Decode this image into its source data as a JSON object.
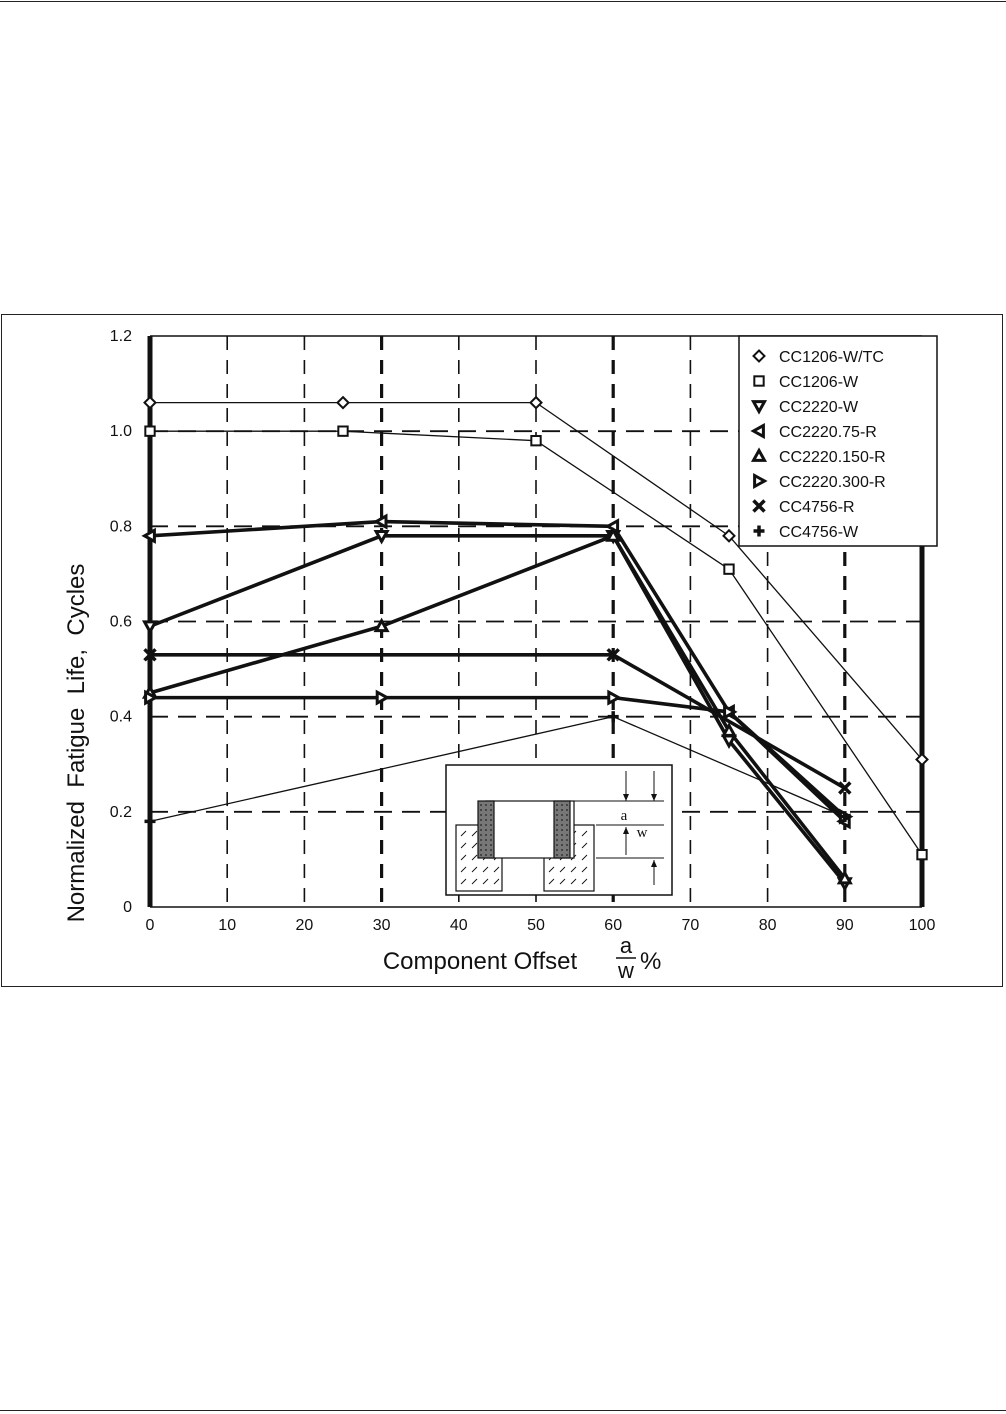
{
  "chart_data": {
    "type": "line",
    "title": "",
    "xlabel": "Component Offset",
    "xlabel_fraction": {
      "numerator": "a",
      "denominator": "w",
      "suffix": "%"
    },
    "ylabel": "Normalized  Fatigue  Life,  Cycles",
    "xlim": [
      0,
      100
    ],
    "ylim": [
      0,
      1.2
    ],
    "x_ticks": [
      0,
      10,
      20,
      30,
      40,
      50,
      60,
      70,
      80,
      90,
      100
    ],
    "x_tick_labels": [
      "0",
      "10",
      "20",
      "30",
      "40",
      "50",
      "60",
      "70",
      "80",
      "90",
      "100"
    ],
    "y_ticks": [
      0,
      0.2,
      0.4,
      0.6,
      0.8,
      1.0,
      1.2
    ],
    "y_tick_labels": [
      "0",
      "0.2",
      "0.4",
      "0.6",
      "0.8",
      "1.0",
      "1.2"
    ],
    "grid": true,
    "legend_position": "top-right",
    "series": [
      {
        "name": "CC1206-W/TC",
        "marker": "diamond",
        "weight": "thin",
        "x": [
          0,
          25,
          50,
          75,
          100
        ],
        "y": [
          1.06,
          1.06,
          1.06,
          0.78,
          0.31
        ]
      },
      {
        "name": "CC1206-W",
        "marker": "square",
        "weight": "thin",
        "x": [
          0,
          25,
          50,
          75,
          100
        ],
        "y": [
          1.0,
          1.0,
          0.98,
          0.71,
          0.11
        ]
      },
      {
        "name": "CC2220-W",
        "marker": "triangle-down",
        "weight": "thick",
        "x": [
          0,
          30,
          60,
          75,
          90
        ],
        "y": [
          0.59,
          0.78,
          0.78,
          0.35,
          0.05
        ]
      },
      {
        "name": "CC2220.75-R",
        "marker": "triangle-left",
        "weight": "thick",
        "x": [
          0,
          30,
          60,
          75,
          90
        ],
        "y": [
          0.78,
          0.81,
          0.8,
          0.41,
          0.18
        ]
      },
      {
        "name": "CC2220.150-R",
        "marker": "triangle-up",
        "weight": "thick",
        "x": [
          0,
          30,
          60,
          75,
          90
        ],
        "y": [
          0.45,
          0.59,
          0.78,
          0.37,
          0.06
        ]
      },
      {
        "name": "CC2220.300-R",
        "marker": "triangle-right",
        "weight": "thick",
        "x": [
          0,
          30,
          60,
          75,
          90
        ],
        "y": [
          0.44,
          0.44,
          0.44,
          0.41,
          0.19
        ]
      },
      {
        "name": "CC4756-R",
        "marker": "x",
        "weight": "thick",
        "x": [
          0,
          60,
          90
        ],
        "y": [
          0.53,
          0.53,
          0.25
        ]
      },
      {
        "name": "CC4756-W",
        "marker": "plus",
        "weight": "thin",
        "x": [
          0,
          60,
          90
        ],
        "y": [
          0.18,
          0.4,
          0.19
        ]
      }
    ],
    "inset_labels": {
      "a": "a",
      "w": "w"
    }
  }
}
